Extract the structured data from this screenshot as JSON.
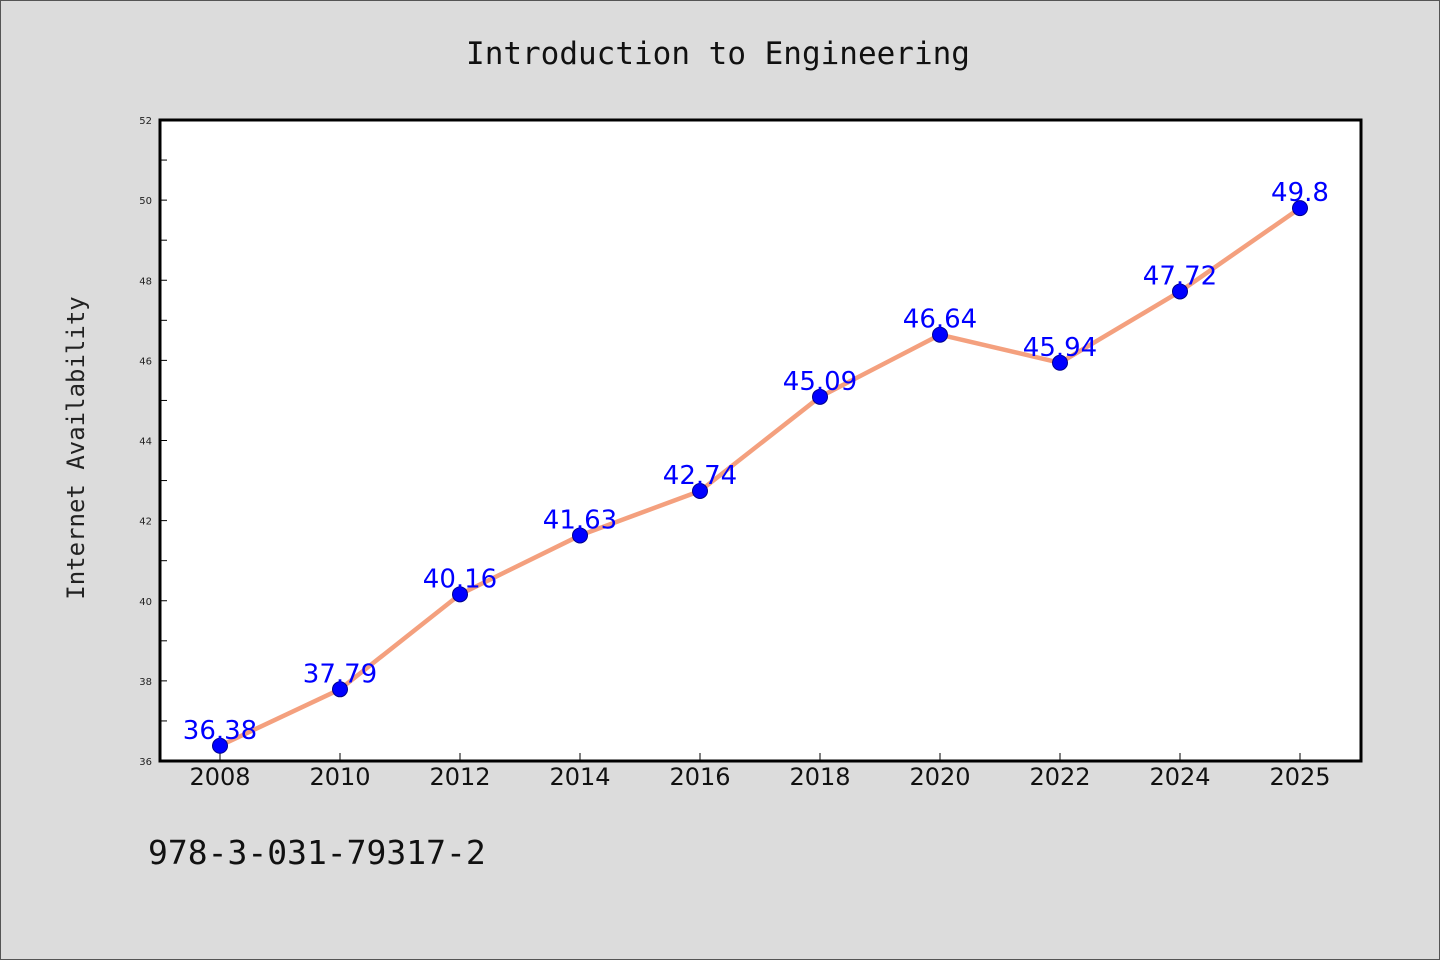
{
  "chart_data": {
    "type": "line",
    "title": "Introduction to Engineering",
    "xlabel": "",
    "ylabel": "Internet Availability",
    "categories": [
      "2008",
      "2010",
      "2012",
      "2014",
      "2016",
      "2018",
      "2020",
      "2022",
      "2024",
      "2025"
    ],
    "values": [
      36.38,
      37.79,
      40.16,
      41.63,
      42.74,
      45.09,
      46.64,
      45.94,
      47.72,
      49.8
    ],
    "data_labels": [
      "36.38",
      "37.79",
      "40.16",
      "41.63",
      "42.74",
      "45.09",
      "46.64",
      "45.94",
      "47.72",
      "49.8"
    ],
    "ylim": [
      36,
      52
    ],
    "yticks": [
      36,
      38,
      40,
      42,
      44,
      46,
      48,
      50,
      52
    ],
    "grid": false,
    "line_color": "#f4a07e",
    "marker_color": "#0000ff",
    "label_color": "#0000ff"
  },
  "footer": {
    "isbn": "978-3-031-79317-2"
  }
}
